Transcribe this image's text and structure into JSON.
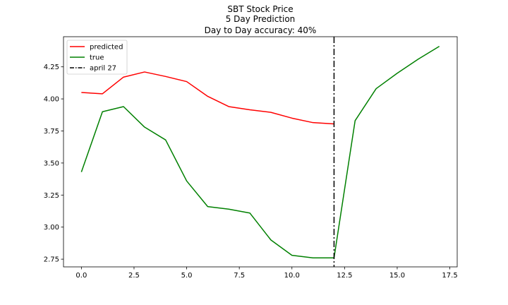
{
  "chart_data": {
    "type": "line",
    "title_lines": [
      "SBT Stock Price",
      "5 Day Prediction",
      "Day to Day accuracy: 40%"
    ],
    "xlabel": "",
    "ylabel": "",
    "xlim": [
      -0.85,
      17.85
    ],
    "ylim": [
      2.69,
      4.485
    ],
    "xticks": [
      0.0,
      2.5,
      5.0,
      7.5,
      10.0,
      12.5,
      15.0,
      17.5
    ],
    "xtick_labels": [
      "0.0",
      "2.5",
      "5.0",
      "7.5",
      "10.0",
      "12.5",
      "15.0",
      "17.5"
    ],
    "yticks": [
      2.75,
      3.0,
      3.25,
      3.5,
      3.75,
      4.0,
      4.25
    ],
    "ytick_labels": [
      "2.75",
      "3.00",
      "3.25",
      "3.50",
      "3.75",
      "4.00",
      "4.25"
    ],
    "grid": false,
    "legend_position": "top-left",
    "series": [
      {
        "name": "predicted",
        "color": "#ff0000",
        "x": [
          0,
          1,
          2,
          3,
          4,
          5,
          6,
          7,
          8,
          9,
          10,
          11,
          12
        ],
        "values": [
          4.05,
          4.04,
          4.17,
          4.21,
          4.175,
          4.135,
          4.02,
          3.94,
          3.915,
          3.895,
          3.85,
          3.815,
          3.805
        ]
      },
      {
        "name": "true",
        "color": "#008000",
        "x": [
          0,
          1,
          2,
          3,
          4,
          5,
          6,
          7,
          8,
          9,
          10,
          11,
          12,
          13,
          14,
          15,
          16,
          17
        ],
        "values": [
          3.43,
          3.9,
          3.94,
          3.78,
          3.68,
          3.36,
          3.16,
          3.14,
          3.11,
          2.9,
          2.78,
          2.76,
          2.76,
          3.83,
          4.08,
          4.2,
          4.31,
          4.41
        ]
      }
    ],
    "vline": {
      "name": "april 27",
      "x": 12,
      "color": "#000000",
      "style": "dash-dot"
    }
  }
}
